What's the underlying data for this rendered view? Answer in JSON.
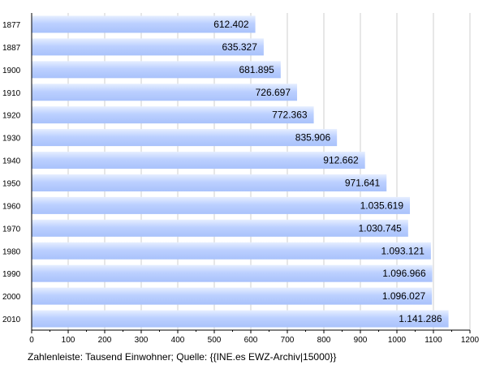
{
  "chart_data": {
    "type": "bar",
    "orientation": "horizontal",
    "categories": [
      "1877",
      "1887",
      "1900",
      "1910",
      "1920",
      "1930",
      "1940",
      "1950",
      "1960",
      "1970",
      "1980",
      "1990",
      "2000",
      "2010"
    ],
    "values": [
      612.402,
      635.327,
      681.895,
      726.697,
      772.363,
      835.906,
      912.662,
      971.641,
      1035.619,
      1030.745,
      1093.121,
      1096.966,
      1096.027,
      1141.286
    ],
    "value_labels": [
      "612.402",
      "635.327",
      "681.895",
      "726.697",
      "772.363",
      "835.906",
      "912.662",
      "971.641",
      "1.035.619",
      "1.030.745",
      "1.093.121",
      "1.096.966",
      "1.096.027",
      "1.141.286"
    ],
    "xlim": [
      0,
      1200
    ],
    "x_ticks": [
      0,
      100,
      200,
      300,
      400,
      500,
      600,
      700,
      800,
      900,
      1000,
      1100,
      1200
    ],
    "grid": true,
    "bar_color": "#bfd3ff",
    "title": "",
    "xlabel": "",
    "ylabel": ""
  },
  "footnote": "Zahlenleiste: Tausend Einwohner; Quelle: {{INE.es EWZ-Archiv|15000}}"
}
